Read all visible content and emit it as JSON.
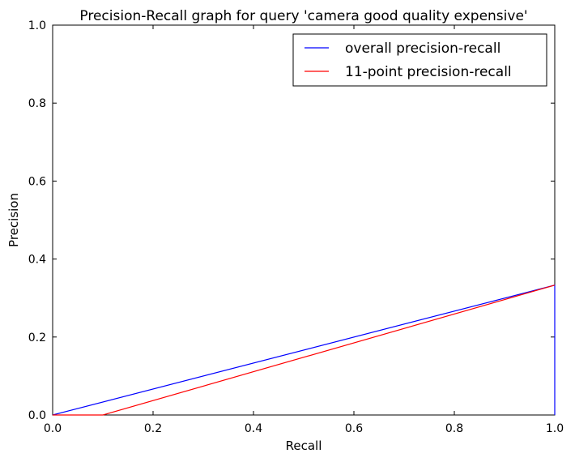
{
  "chart_data": {
    "type": "line",
    "title": "Precision-Recall graph for query 'camera good quality expensive'",
    "xlabel": "Recall",
    "ylabel": "Precision",
    "xlim": [
      0.0,
      1.0
    ],
    "ylim": [
      0.0,
      1.0
    ],
    "xticks": [
      "0.0",
      "0.2",
      "0.4",
      "0.6",
      "0.8",
      "1.0"
    ],
    "yticks": [
      "0.0",
      "0.2",
      "0.4",
      "0.6",
      "0.8",
      "1.0"
    ],
    "grid": false,
    "legend_position": "top-right",
    "series": [
      {
        "name": "overall precision-recall",
        "color": "#0000ff",
        "x": [
          0.0,
          1.0,
          1.0
        ],
        "y": [
          0.0,
          0.333,
          0.0
        ]
      },
      {
        "name": "11-point precision-recall",
        "color": "#ff0000",
        "x": [
          0.0,
          0.1,
          1.0
        ],
        "y": [
          0.0,
          0.0,
          0.333
        ]
      }
    ]
  }
}
